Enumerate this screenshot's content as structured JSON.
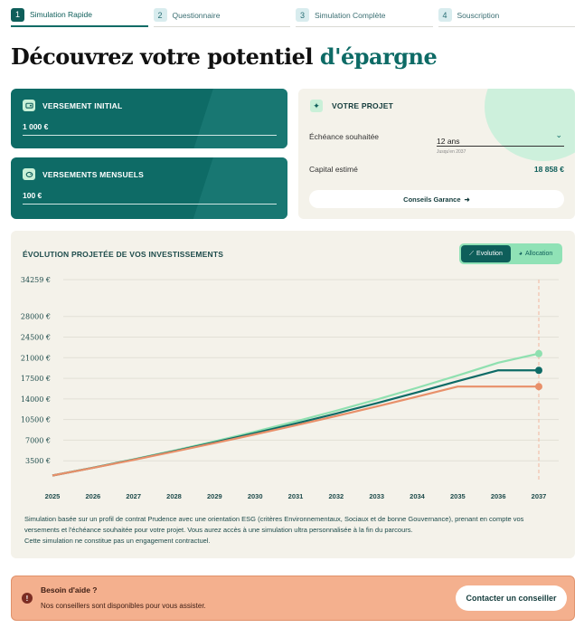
{
  "stepper": [
    {
      "num": "1",
      "label": "Simulation Rapide",
      "active": true
    },
    {
      "num": "2",
      "label": "Questionnaire",
      "active": false
    },
    {
      "num": "3",
      "label": "Simulation Complète",
      "active": false
    },
    {
      "num": "4",
      "label": "Souscription",
      "active": false
    }
  ],
  "title": {
    "main": "Découvrez votre potentiel ",
    "accent": "d'épargne"
  },
  "initial": {
    "title": "VERSEMENT INITIAL",
    "value": "1 000 €",
    "icon": "wallet-icon"
  },
  "monthly": {
    "title": "VERSEMENTS MENSUELS",
    "value": "100 €",
    "icon": "piggy-icon"
  },
  "project": {
    "title": "VOTRE PROJET",
    "icon": "sparkle-icon",
    "echeance_label": "Échéance souhaitée",
    "echeance_value": "12 ans",
    "echeance_hint": "Jusqu'en 2037",
    "capital_label": "Capital estimé",
    "capital_value": "18 858 €",
    "button": "Conseils Garance",
    "button_arrow": "➜"
  },
  "chart": {
    "title": "ÉVOLUTION PROJETÉE DE VOS INVESTISSEMENTS",
    "toggle": {
      "evolution": "Evolution",
      "allocation": "Allocation",
      "active": "evolution"
    },
    "note": "Simulation basée sur un profil de contrat Prudence avec une orientation ESG (critères Environnementaux, Sociaux et de bonne Gouvernance), prenant en compte vos versements et l'échéance souhaitée pour votre projet. Vous aurez accès à une simulation ultra personnalisée à la fin du parcours.",
    "note2": "Cette simulation ne constitue pas un engagement contractuel."
  },
  "chart_data": {
    "type": "line",
    "x": [
      2025,
      2026,
      2027,
      2028,
      2029,
      2030,
      2031,
      2032,
      2033,
      2034,
      2035,
      2036,
      2037
    ],
    "yticks": [
      "3500 €",
      "7000 €",
      "10500 €",
      "14000 €",
      "17500 €",
      "21000 €",
      "24500 €",
      "28000 €",
      "34259 €"
    ],
    "ytick_values": [
      3500,
      7000,
      10500,
      14000,
      17500,
      21000,
      24500,
      28000,
      34259
    ],
    "ylim": [
      0,
      34259
    ],
    "series": [
      {
        "color": "#8fe0b0",
        "values": [
          1000,
          2340,
          3760,
          5240,
          6800,
          8450,
          10180,
          12000,
          13900,
          15900,
          17980,
          20160,
          21700
        ]
      },
      {
        "color": "#0e6b66",
        "values": [
          1000,
          2320,
          3700,
          5140,
          6640,
          8200,
          9830,
          11520,
          13280,
          15120,
          17020,
          18858,
          18858
        ]
      },
      {
        "color": "#e8906a",
        "values": [
          1000,
          2300,
          3650,
          5060,
          6500,
          7990,
          9520,
          11100,
          12730,
          14400,
          16100,
          16100,
          16100
        ]
      }
    ],
    "grid": true,
    "vertical_marker_x": 2037
  },
  "help": {
    "icon": "info-icon",
    "title": "Besoin d'aide ?",
    "text": "Nos conseillers sont disponibles pour vous assister.",
    "button": "Contacter un conseiller"
  }
}
